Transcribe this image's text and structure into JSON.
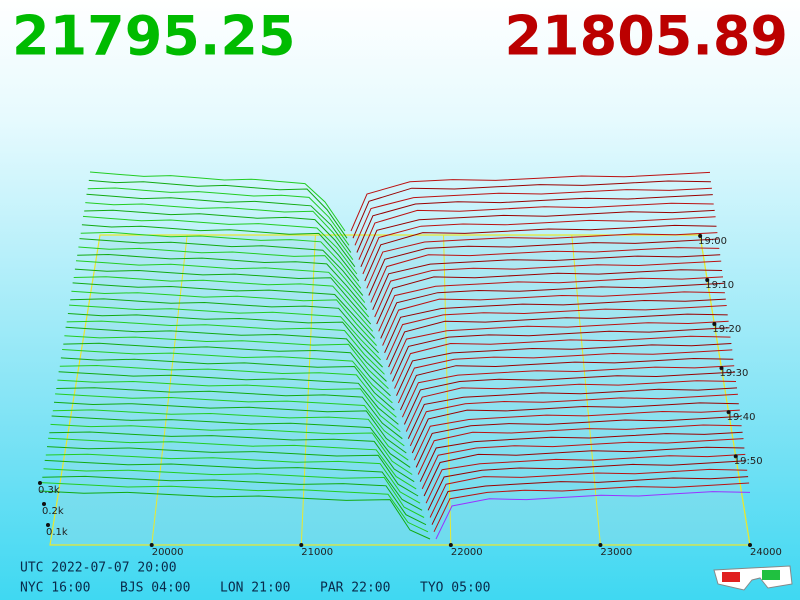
{
  "prices": {
    "bid": "21795.25",
    "ask": "21805.89"
  },
  "price_axis": [
    "20000",
    "21000",
    "22000",
    "23000",
    "24000"
  ],
  "time_axis": [
    "19:00",
    "19:10",
    "19:20",
    "19:30",
    "19:40",
    "19:50"
  ],
  "depth_axis": [
    "0.3k",
    "0.2k",
    "0.1k"
  ],
  "clock": {
    "utc": "UTC 2022-07-07 20:00",
    "zones": [
      "NYC 16:00",
      "BJS 04:00",
      "LON 21:00",
      "PAR 22:00",
      "TYO 05:00"
    ]
  }
}
